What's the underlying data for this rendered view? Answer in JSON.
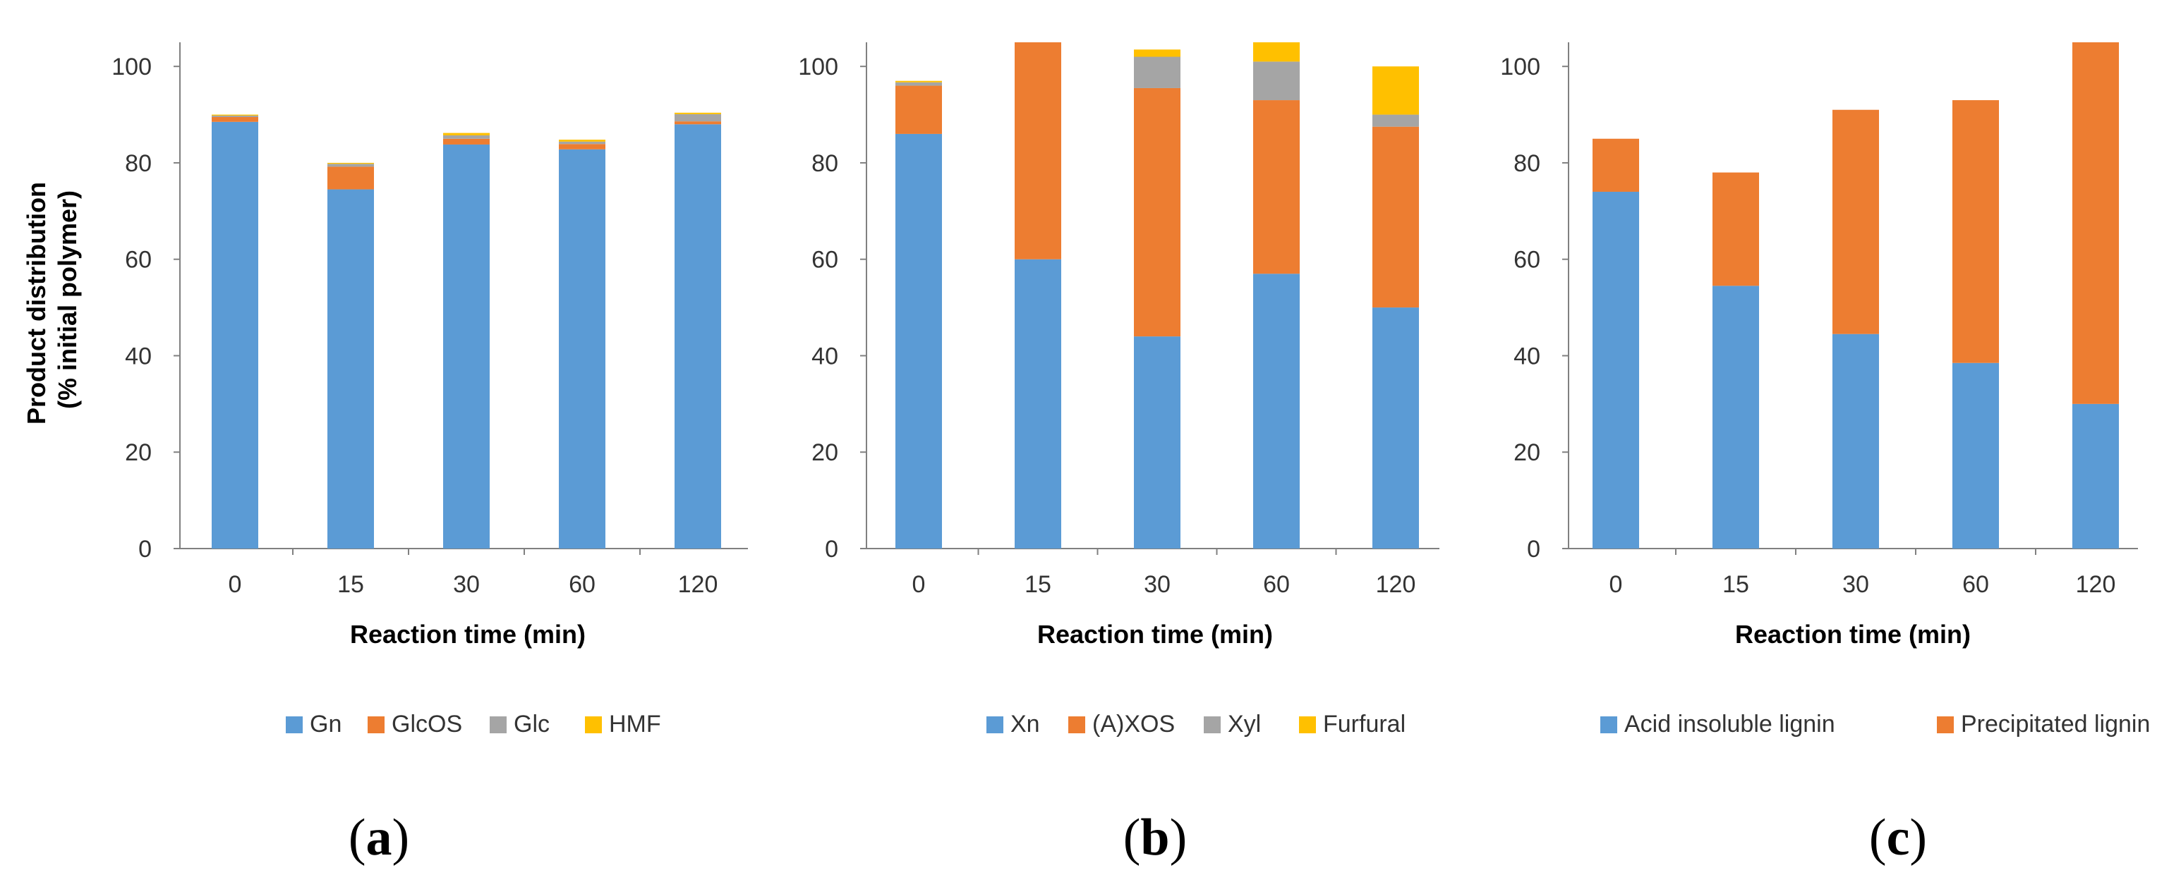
{
  "figure": {
    "y_axis_title_lines": [
      "Product distribution",
      "(% initial polymer)"
    ]
  },
  "chart_data": [
    {
      "type": "stacked-bar",
      "panel_label": "(a)",
      "panel_letter": "a",
      "xlabel": "Reaction time (min)",
      "ylim": [
        0,
        105
      ],
      "yticks": [
        0,
        20,
        40,
        60,
        80,
        100
      ],
      "categories": [
        "0",
        "15",
        "30",
        "60",
        "120"
      ],
      "legend_position": "bottom",
      "series": [
        {
          "name": "Gn",
          "color": "#5B9BD5",
          "values": [
            88.5,
            74.5,
            83.8,
            82.8,
            88.0
          ]
        },
        {
          "name": "GlcOS",
          "color": "#ED7D31",
          "values": [
            1.0,
            4.7,
            1.2,
            1.1,
            0.6
          ]
        },
        {
          "name": "Glc",
          "color": "#A5A5A5",
          "values": [
            0.3,
            0.6,
            0.7,
            0.5,
            1.5
          ]
        },
        {
          "name": "HMF",
          "color": "#FFC000",
          "values": [
            0.2,
            0.2,
            0.5,
            0.4,
            0.3
          ]
        }
      ]
    },
    {
      "type": "stacked-bar",
      "panel_label": "(b)",
      "panel_letter": "b",
      "xlabel": "Reaction time (min)",
      "ylim": [
        0,
        105
      ],
      "yticks": [
        0,
        20,
        40,
        60,
        80,
        100
      ],
      "categories": [
        "0",
        "15",
        "30",
        "60",
        "120"
      ],
      "legend_position": "bottom",
      "series": [
        {
          "name": "Xn",
          "color": "#5B9BD5",
          "values": [
            86.0,
            60.0,
            44.0,
            57.0,
            50.0
          ]
        },
        {
          "name": "(A)XOS",
          "color": "#ED7D31",
          "values": [
            10.0,
            45.0,
            51.5,
            36.0,
            37.5
          ]
        },
        {
          "name": "Xyl",
          "color": "#A5A5A5",
          "values": [
            0.7,
            0.0,
            6.5,
            8.0,
            2.5
          ]
        },
        {
          "name": "Furfural",
          "color": "#FFC000",
          "values": [
            0.3,
            0.0,
            1.5,
            4.0,
            10.0
          ]
        }
      ]
    },
    {
      "type": "stacked-bar",
      "panel_label": "(c)",
      "panel_letter": "c",
      "xlabel": "Reaction time (min)",
      "ylim": [
        0,
        105
      ],
      "yticks": [
        0,
        20,
        40,
        60,
        80,
        100
      ],
      "categories": [
        "0",
        "15",
        "30",
        "60",
        "120"
      ],
      "legend_position": "bottom",
      "series": [
        {
          "name": "Acid insoluble lignin",
          "color": "#5B9BD5",
          "values": [
            74.0,
            54.5,
            44.5,
            38.5,
            30.0
          ]
        },
        {
          "name": "Precipitated lignin",
          "color": "#ED7D31",
          "values": [
            11.0,
            23.5,
            46.5,
            54.5,
            75.0
          ]
        }
      ]
    }
  ]
}
